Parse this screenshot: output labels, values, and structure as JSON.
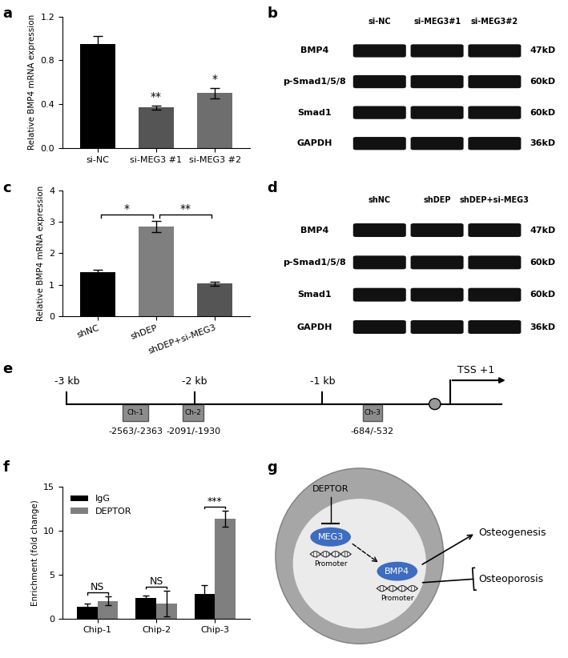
{
  "chart_data": [
    {
      "panel": "a",
      "type": "bar",
      "y_label": "Relative BMP4 mRNA expression",
      "categories": [
        "si-NC",
        "si-MEG3 #1",
        "si-MEG3 #2"
      ],
      "values": [
        0.95,
        0.37,
        0.5
      ],
      "errors": [
        0.07,
        0.02,
        0.05
      ],
      "colors": [
        "#000000",
        "#555555",
        "#6e6e6e"
      ],
      "ylim": [
        0,
        1.2
      ],
      "yticks": [
        {
          "value": 0,
          "label": "0.0"
        },
        0.4,
        0.8,
        1.2
      ],
      "annotations": [
        {
          "category": "si-MEG3 #1",
          "text": "**"
        },
        {
          "category": "si-MEG3 #2",
          "text": "*"
        }
      ]
    },
    {
      "panel": "c",
      "type": "bar",
      "y_label": "Relative BMP4 mRNA expression",
      "categories": [
        "shNC",
        "shDEP",
        "shDEP+si-MEG3"
      ],
      "values": [
        1.4,
        2.85,
        1.03
      ],
      "errors": [
        0.07,
        0.18,
        0.06
      ],
      "colors": [
        "#000000",
        "#7f7f7f",
        "#555555"
      ],
      "ylim": [
        0,
        4
      ],
      "yticks": [
        0,
        1,
        2,
        3,
        4
      ],
      "brackets": [
        {
          "from": "shNC",
          "to": "shDEP",
          "text": "*"
        },
        {
          "from": "shDEP",
          "to": "shDEP+si-MEG3",
          "text": "**"
        }
      ]
    },
    {
      "panel": "f",
      "type": "bar",
      "y_label": "Enrichment (fold change)",
      "categories": [
        "Chip-1",
        "Chip-2",
        "Chip-3"
      ],
      "series": [
        {
          "name": "IgG",
          "color": "#000000",
          "values": [
            1.3,
            2.3,
            2.8
          ],
          "errors": [
            0.4,
            0.3,
            1.0
          ]
        },
        {
          "name": "DEPTOR",
          "color": "#7f7f7f",
          "values": [
            2.0,
            1.7,
            11.4
          ],
          "errors": [
            0.5,
            1.5,
            0.9
          ]
        }
      ],
      "ylim": [
        0,
        15
      ],
      "yticks": [
        0,
        5,
        10,
        15
      ],
      "legend": "upper left",
      "annotations": [
        {
          "category": "Chip-1",
          "text": "NS"
        },
        {
          "category": "Chip-2",
          "text": "NS"
        },
        {
          "category": "Chip-3",
          "text": "***"
        }
      ]
    }
  ],
  "blots": [
    {
      "panel": "b",
      "lanes": [
        "si-NC",
        "si-MEG3#1",
        "si-MEG3#2"
      ],
      "bands": [
        {
          "name": "BMP4",
          "size": "47kD"
        },
        {
          "name": "p-Smad1/5/8",
          "size": "60kD"
        },
        {
          "name": "Smad1",
          "size": "60kD"
        },
        {
          "name": "GAPDH",
          "size": "36kD"
        }
      ]
    },
    {
      "panel": "d",
      "lanes": [
        "shNC",
        "shDEP",
        "shDEP+si-MEG3"
      ],
      "bands": [
        {
          "name": "BMP4",
          "size": "47kD"
        },
        {
          "name": "p-Smad1/5/8",
          "size": "60kD"
        },
        {
          "name": "Smad1",
          "size": "60kD"
        },
        {
          "name": "GAPDH",
          "size": "36kD"
        }
      ]
    }
  ],
  "promoter_map": {
    "panel": "e",
    "ticks": [
      {
        "value": -3000,
        "label": "-3 kb"
      },
      {
        "value": -2000,
        "label": "-2 kb"
      },
      {
        "value": -1000,
        "label": "-1 kb"
      }
    ],
    "tss": {
      "value": 0,
      "label": "TSS +1"
    },
    "regions": [
      {
        "name": "Ch-1",
        "label": "-2563/-2363"
      },
      {
        "name": "Ch-2",
        "label": "-2091/-1930"
      },
      {
        "name": "Ch-3",
        "label": "-684/-532"
      }
    ]
  },
  "schematic": {
    "panel": "g",
    "inhibitor": "DEPTOR",
    "lncRNA": "MEG3",
    "target": "BMP4",
    "promoter_labels": [
      "Promoter",
      "Promoter"
    ],
    "promoted": "Osteogenesis",
    "inhibited": "Osteoporosis"
  }
}
